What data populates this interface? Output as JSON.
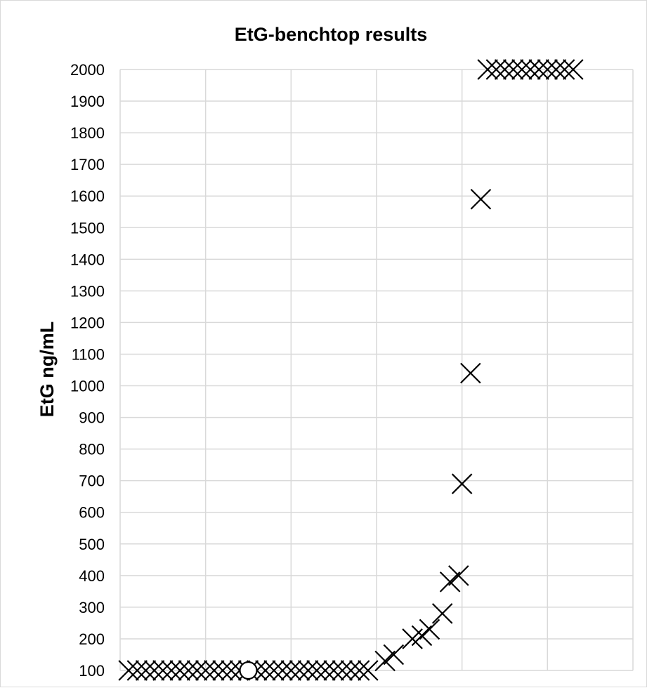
{
  "chart_data": {
    "type": "scatter",
    "title": "EtG-benchtop results",
    "xlabel": "",
    "ylabel": "EtG ng/mL",
    "ylim": [
      100,
      2000
    ],
    "yticks": [
      100,
      200,
      300,
      400,
      500,
      600,
      700,
      800,
      900,
      1000,
      1100,
      1200,
      1300,
      1400,
      1500,
      1600,
      1700,
      1800,
      1900,
      2000
    ],
    "xlim": [
      0,
      6
    ],
    "x_tick_labels_shown": false,
    "grid": true,
    "legend": "none",
    "series": [
      {
        "marker": "x",
        "color": "#000000",
        "points": [
          [
            0.1,
            100
          ],
          [
            0.2,
            100
          ],
          [
            0.3,
            100
          ],
          [
            0.4,
            100
          ],
          [
            0.5,
            100
          ],
          [
            0.6,
            100
          ],
          [
            0.7,
            100
          ],
          [
            0.8,
            100
          ],
          [
            0.9,
            100
          ],
          [
            1.0,
            100
          ],
          [
            1.1,
            100
          ],
          [
            1.2,
            100
          ],
          [
            1.3,
            100
          ],
          [
            1.4,
            100
          ],
          [
            1.5,
            100
          ],
          [
            1.6,
            100
          ],
          [
            1.7,
            100
          ],
          [
            1.8,
            100
          ],
          [
            1.9,
            100
          ],
          [
            2.0,
            100
          ],
          [
            2.1,
            100
          ],
          [
            2.2,
            100
          ],
          [
            2.3,
            100
          ],
          [
            2.4,
            100
          ],
          [
            2.5,
            100
          ],
          [
            2.6,
            100
          ],
          [
            2.7,
            100
          ],
          [
            2.8,
            100
          ],
          [
            2.9,
            100
          ],
          [
            3.1,
            130
          ],
          [
            3.2,
            150
          ],
          [
            3.42,
            200
          ],
          [
            3.53,
            210
          ],
          [
            3.62,
            230
          ],
          [
            3.77,
            280
          ],
          [
            3.86,
            380
          ],
          [
            3.96,
            400
          ],
          [
            4.0,
            690
          ],
          [
            4.1,
            1040
          ],
          [
            4.22,
            1590
          ],
          [
            4.3,
            2000
          ],
          [
            4.4,
            2000
          ],
          [
            4.5,
            2000
          ],
          [
            4.6,
            2000
          ],
          [
            4.7,
            2000
          ],
          [
            4.8,
            2000
          ],
          [
            4.9,
            2000
          ],
          [
            5.0,
            2000
          ],
          [
            5.1,
            2000
          ],
          [
            5.2,
            2000
          ],
          [
            5.3,
            2000
          ]
        ]
      },
      {
        "marker": "circle",
        "color": "#000000",
        "points": [
          [
            1.5,
            100
          ]
        ]
      }
    ]
  }
}
